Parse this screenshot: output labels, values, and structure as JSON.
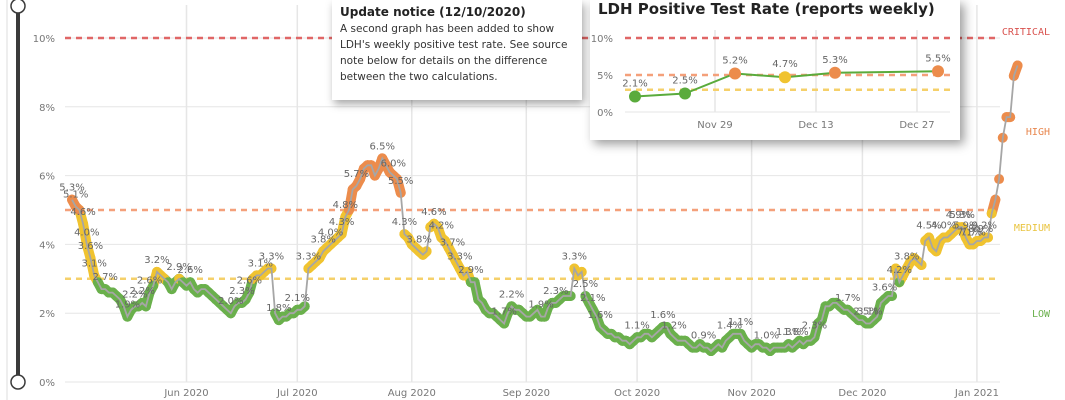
{
  "chart_data": [
    {
      "type": "line",
      "title": "",
      "xlabel": "",
      "ylabel": "",
      "ylim": [
        0,
        10
      ],
      "y_ticks": [
        "0%",
        "2%",
        "4%",
        "6%",
        "8%",
        "10%"
      ],
      "x_ticks": [
        "Jun 2020",
        "Jul 2020",
        "Aug 2020",
        "Sep 2020",
        "Oct 2020",
        "Nov 2020",
        "Dec 2020",
        "Jan 2021"
      ],
      "x_range": [
        "2020-05-01",
        "2021-01-04"
      ],
      "grid": true,
      "thresholds": [
        {
          "label": "CRITICAL",
          "value": 10,
          "color": "#e06666"
        },
        {
          "label": "HIGH",
          "value": 5,
          "color": "#f4a07a"
        },
        {
          "label": "MEDIUM",
          "value": 3,
          "color": "#f5d06a"
        }
      ],
      "zone_labels": [
        {
          "label": "CRITICAL",
          "y": 10.2,
          "color": "#d9534f"
        },
        {
          "label": "HIGH",
          "y": 7.3,
          "color": "#e8874f"
        },
        {
          "label": "MEDIUM",
          "y": 4.5,
          "color": "#e9c440"
        },
        {
          "label": "LOW",
          "y": 2.0,
          "color": "#6ab04c"
        }
      ],
      "colors": {
        "low": "#6ab04c",
        "medium": "#f0c330",
        "high": "#ec8c4c",
        "line": "#a6a6a6"
      },
      "series": [
        {
          "name": "Daily positive test rate",
          "start_date": "2020-05-01",
          "values": [
            5.3,
            5.1,
            5.0,
            4.6,
            4.0,
            3.6,
            3.1,
            2.9,
            2.7,
            2.7,
            2.6,
            2.6,
            2.5,
            2.4,
            2.2,
            1.9,
            2.1,
            2.2,
            2.2,
            2.3,
            2.2,
            2.6,
            2.8,
            3.2,
            3.1,
            3.0,
            2.9,
            2.7,
            2.9,
            3.0,
            2.9,
            2.8,
            2.9,
            2.7,
            2.6,
            2.7,
            2.7,
            2.6,
            2.5,
            2.4,
            2.3,
            2.2,
            2.1,
            2.0,
            2.2,
            2.3,
            2.3,
            2.4,
            2.6,
            3.0,
            3.1,
            3.1,
            3.2,
            3.3,
            3.3,
            2.0,
            1.8,
            1.9,
            1.9,
            2.0,
            2.0,
            2.1,
            2.1,
            2.2,
            3.3,
            3.4,
            3.5,
            3.6,
            3.8,
            3.9,
            4.0,
            4.1,
            4.2,
            4.3,
            4.8,
            5.0,
            5.6,
            5.7,
            5.9,
            6.2,
            6.3,
            6.3,
            6.0,
            6.2,
            6.5,
            6.3,
            6.1,
            6.0,
            5.9,
            5.5,
            4.3,
            4.2,
            4.0,
            3.9,
            3.8,
            3.7,
            3.8,
            4.5,
            4.6,
            4.5,
            4.2,
            4.1,
            3.9,
            3.7,
            3.5,
            3.3,
            3.1,
            3.2,
            2.9,
            2.9,
            2.4,
            2.3,
            2.1,
            2.0,
            2.0,
            1.9,
            1.8,
            1.7,
            2.0,
            2.2,
            2.1,
            2.1,
            2.0,
            1.9,
            1.9,
            2.0,
            2.1,
            1.9,
            1.9,
            2.2,
            2.3,
            2.3,
            2.4,
            2.5,
            2.5,
            2.5,
            3.3,
            3.1,
            3.2,
            2.5,
            2.3,
            2.1,
            1.9,
            1.6,
            1.5,
            1.4,
            1.4,
            1.3,
            1.3,
            1.2,
            1.2,
            1.1,
            1.2,
            1.3,
            1.3,
            1.4,
            1.4,
            1.3,
            1.4,
            1.5,
            1.6,
            1.6,
            1.4,
            1.3,
            1.2,
            1.2,
            1.2,
            1.1,
            1.0,
            1.0,
            1.1,
            1.0,
            1.0,
            0.9,
            1.0,
            1.1,
            1.0,
            1.2,
            1.3,
            1.4,
            1.4,
            1.4,
            1.2,
            1.1,
            1.0,
            1.1,
            1.1,
            1.0,
            1.0,
            0.9,
            1.0,
            1.0,
            1.0,
            1.0,
            1.1,
            1.0,
            1.1,
            1.2,
            1.1,
            1.2,
            1.2,
            1.3,
            1.7,
            1.8,
            2.2,
            2.2,
            2.3,
            2.3,
            2.2,
            2.1,
            2.1,
            2.0,
            1.9,
            1.8,
            1.8,
            1.7,
            1.7,
            1.8,
            1.9,
            2.3,
            2.4,
            2.5,
            2.5,
            3.3,
            2.9,
            3.1,
            3.3,
            3.5,
            3.6,
            3.5,
            3.4,
            4.1,
            4.2,
            3.9,
            3.8,
            4.1,
            4.2,
            4.2,
            4.3,
            4.4,
            4.5,
            4.5,
            4.2,
            4.0,
            4.0,
            4.1,
            4.1,
            4.2,
            4.2,
            4.9,
            5.3,
            5.9,
            7.1,
            7.7,
            7.7,
            8.9,
            9.2
          ]
        }
      ],
      "data_labels": [
        {
          "day": 0,
          "text": "5.3%"
        },
        {
          "day": 1,
          "text": "5.1%"
        },
        {
          "day": 3,
          "text": "4.6%"
        },
        {
          "day": 4,
          "text": "4.0%"
        },
        {
          "day": 5,
          "text": "3.6%"
        },
        {
          "day": 6,
          "text": "3.1%"
        },
        {
          "day": 9,
          "text": "2.7%"
        },
        {
          "day": 15,
          "text": "1.9%"
        },
        {
          "day": 17,
          "text": "2.2%"
        },
        {
          "day": 19,
          "text": "2.2%"
        },
        {
          "day": 21,
          "text": "2.6%"
        },
        {
          "day": 23,
          "text": "3.2%"
        },
        {
          "day": 29,
          "text": "2.9%"
        },
        {
          "day": 32,
          "text": "2.6%"
        },
        {
          "day": 43,
          "text": "2.0%"
        },
        {
          "day": 46,
          "text": "2.3%"
        },
        {
          "day": 48,
          "text": "2.6%"
        },
        {
          "day": 51,
          "text": "3.1%"
        },
        {
          "day": 54,
          "text": "3.3%"
        },
        {
          "day": 56,
          "text": "1.8%"
        },
        {
          "day": 61,
          "text": "2.1%"
        },
        {
          "day": 64,
          "text": "3.3%"
        },
        {
          "day": 68,
          "text": "3.8%"
        },
        {
          "day": 70,
          "text": "4.0%"
        },
        {
          "day": 73,
          "text": "4.3%"
        },
        {
          "day": 74,
          "text": "4.8%"
        },
        {
          "day": 77,
          "text": "5.7%"
        },
        {
          "day": 84,
          "text": "6.5%"
        },
        {
          "day": 87,
          "text": "6.0%"
        },
        {
          "day": 89,
          "text": "5.5%"
        },
        {
          "day": 90,
          "text": "4.3%"
        },
        {
          "day": 94,
          "text": "3.8%"
        },
        {
          "day": 98,
          "text": "4.6%"
        },
        {
          "day": 100,
          "text": "4.2%"
        },
        {
          "day": 103,
          "text": "3.7%"
        },
        {
          "day": 105,
          "text": "3.3%"
        },
        {
          "day": 108,
          "text": "2.9%"
        },
        {
          "day": 117,
          "text": "1.7%"
        },
        {
          "day": 119,
          "text": "2.2%"
        },
        {
          "day": 127,
          "text": "1.9%"
        },
        {
          "day": 131,
          "text": "2.3%"
        },
        {
          "day": 136,
          "text": "3.3%"
        },
        {
          "day": 139,
          "text": "2.5%"
        },
        {
          "day": 141,
          "text": "2.1%"
        },
        {
          "day": 143,
          "text": "1.6%"
        },
        {
          "day": 153,
          "text": "1.1%"
        },
        {
          "day": 160,
          "text": "1.6%"
        },
        {
          "day": 163,
          "text": "1.2%"
        },
        {
          "day": 171,
          "text": "0.9%"
        },
        {
          "day": 178,
          "text": "1.4%"
        },
        {
          "day": 181,
          "text": "1.1%"
        },
        {
          "day": 188,
          "text": "1.0%"
        },
        {
          "day": 194,
          "text": "1.3%"
        },
        {
          "day": 196,
          "text": "1.8%"
        },
        {
          "day": 201,
          "text": "2.3%"
        },
        {
          "day": 210,
          "text": "1.7%"
        },
        {
          "day": 215,
          "text": "2.5%"
        },
        {
          "day": 216,
          "text": "3.1%"
        },
        {
          "day": 220,
          "text": "3.6%"
        },
        {
          "day": 224,
          "text": "4.2%"
        },
        {
          "day": 226,
          "text": "3.8%"
        },
        {
          "day": 232,
          "text": "4.5%"
        },
        {
          "day": 236,
          "text": "4.0%"
        },
        {
          "day": 240,
          "text": "4.9%"
        },
        {
          "day": 241,
          "text": "5.3%"
        },
        {
          "day": 242,
          "text": "5.9%"
        },
        {
          "day": 243,
          "text": "7.1%"
        },
        {
          "day": 244,
          "text": "7.7%"
        },
        {
          "day": 246,
          "text": "8.9%"
        },
        {
          "day": 247,
          "text": "9.2%"
        }
      ]
    },
    {
      "type": "line",
      "title": "LDH Positive Test Rate (reports weekly)",
      "ylim": [
        0,
        10
      ],
      "y_ticks": [
        "0%",
        "5%",
        "10%"
      ],
      "x_ticks": [
        "Nov 29",
        "Dec 13",
        "Dec 27"
      ],
      "grid": true,
      "thresholds": [
        {
          "value": 10,
          "color": "#e06666"
        },
        {
          "value": 5,
          "color": "#f4a07a"
        },
        {
          "value": 3,
          "color": "#f5d06a"
        }
      ],
      "categories": [
        "Nov 19",
        "Nov 26",
        "Dec 3",
        "Dec 10",
        "Dec 17",
        "Dec 31"
      ],
      "series": [
        {
          "name": "LDH weekly positive test rate",
          "values": [
            2.1,
            2.5,
            5.2,
            4.7,
            5.3,
            5.5
          ],
          "labels": [
            "2.1%",
            "2.5%",
            "5.2%",
            "4.7%",
            "5.3%",
            "5.5%"
          ],
          "color": "#5aab3c"
        }
      ]
    }
  ],
  "notice": {
    "title": "Update notice (12/10/2020)",
    "body": "A second graph has been added to show LDH's weekly positive test rate. See source note below for details on the difference between the two calculations."
  },
  "slider": {
    "range_start": "10%",
    "range_end": "0%"
  }
}
